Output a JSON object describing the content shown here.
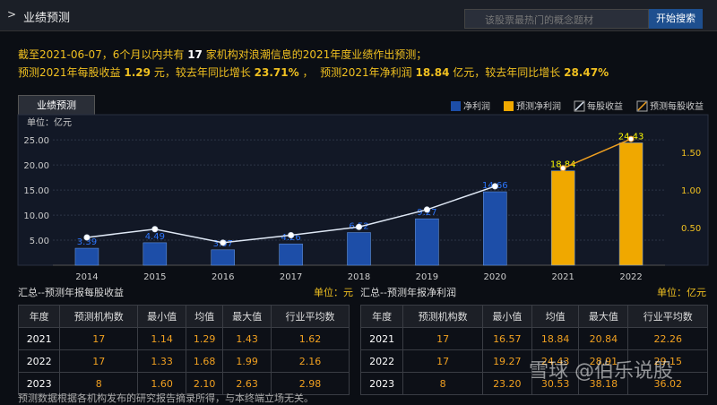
{
  "header": {
    "title": "业绩预测",
    "search_placeholder": "该股票最热门的概念题材",
    "search_button": "开始搜索"
  },
  "summary": {
    "line1": [
      "截至2021-06-07，6个月以内共有",
      "17",
      "家机构对浪潮信息的2021年度业绩作出预测；"
    ],
    "line2": [
      "预测2021年每股收益",
      "1.29",
      "元，较去年同比增长",
      "23.71%",
      "，  预测2021年净利润",
      "18.84",
      "亿元，较去年同比增长",
      "28.47%"
    ]
  },
  "tab": "业绩预测",
  "chart_data": {
    "type": "bar",
    "y_unit": "单位：亿元",
    "categories": [
      "2014",
      "2015",
      "2016",
      "2017",
      "2018",
      "2019",
      "2020",
      "2021",
      "2022"
    ],
    "series": [
      {
        "name": "净利润",
        "color": "#1d4ea8",
        "values": [
          3.39,
          4.49,
          3.07,
          4.26,
          6.52,
          9.27,
          14.66,
          null,
          null
        ]
      },
      {
        "name": "预测净利润",
        "color": "#f0a800",
        "values": [
          null,
          null,
          null,
          null,
          null,
          null,
          null,
          18.84,
          24.43
        ]
      },
      {
        "name": "每股收益",
        "color": "#dfe8f5",
        "type": "line",
        "axis": "y2",
        "values": [
          0.37,
          0.48,
          0.3,
          0.4,
          0.51,
          0.74,
          1.05,
          null,
          null
        ]
      },
      {
        "name": "预测每股收益",
        "color": "#f0a020",
        "type": "line",
        "axis": "y2",
        "values": [
          null,
          null,
          null,
          null,
          null,
          null,
          null,
          1.29,
          1.68
        ]
      }
    ],
    "ylim": [
      0,
      27
    ],
    "yticks": [
      {
        "value": 5,
        "label": "5.00"
      },
      {
        "value": 10,
        "label": "10.00"
      },
      {
        "value": 15,
        "label": "15.00"
      },
      {
        "value": 20,
        "label": "20.00"
      },
      {
        "value": 25,
        "label": "25.00"
      }
    ],
    "y2lim": [
      0,
      1.8
    ],
    "y2ticks": [
      {
        "value": 0.5,
        "label": "0.50"
      },
      {
        "value": 1,
        "label": "1.00"
      },
      {
        "value": 1.5,
        "label": "1.50"
      }
    ],
    "grid": true
  },
  "eps_table": {
    "title": "汇总--预测年报每股收益",
    "unit": "单位：元",
    "columns": [
      "年度",
      "预测机构数",
      "最小值",
      "均值",
      "最大值",
      "行业平均数"
    ],
    "rows": [
      [
        "2021",
        "17",
        "1.14",
        "1.29",
        "1.43",
        "1.62"
      ],
      [
        "2022",
        "17",
        "1.33",
        "1.68",
        "1.99",
        "2.16"
      ],
      [
        "2023",
        "8",
        "1.60",
        "2.10",
        "2.63",
        "2.98"
      ]
    ]
  },
  "profit_table": {
    "title": "汇总--预测年报净利润",
    "unit": "单位：亿元",
    "columns": [
      "年度",
      "预测机构数",
      "最小值",
      "均值",
      "最大值",
      "行业平均数"
    ],
    "rows": [
      [
        "2021",
        "17",
        "16.57",
        "18.84",
        "20.84",
        "22.26"
      ],
      [
        "2022",
        "17",
        "19.27",
        "24.43",
        "28.91",
        "29.15"
      ],
      [
        "2023",
        "8",
        "23.20",
        "30.53",
        "38.18",
        "36.02"
      ]
    ]
  },
  "watermark": "雪球 @伯乐说股",
  "footnote": "预测数据根据各机构发布的研究报告摘录所得，与本终端立场无关。"
}
